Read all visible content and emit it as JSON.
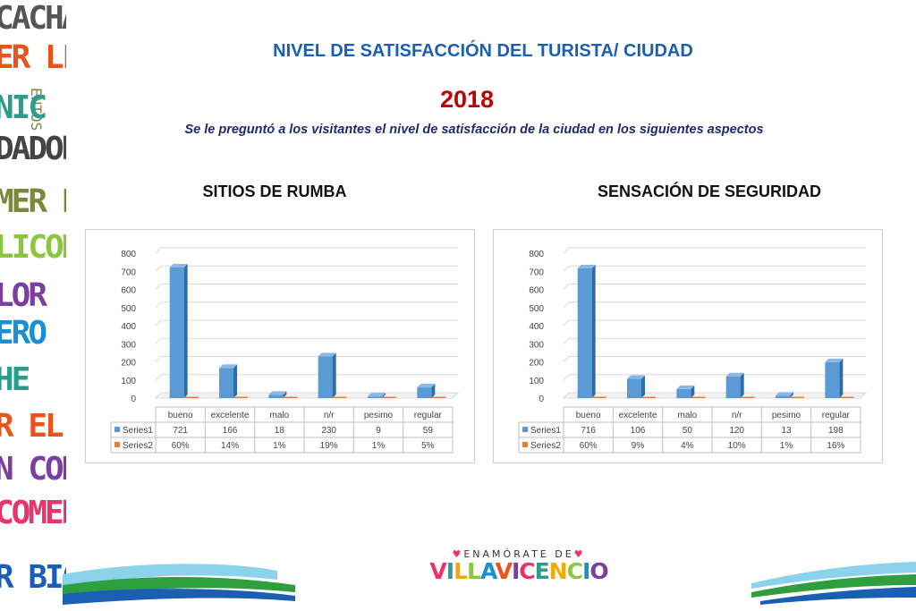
{
  "page": {
    "title": "NIVEL DE SATISFACCIÓN DEL TURISTA/ CIUDAD",
    "year": "2018",
    "subtitle": "Se le preguntó a los visitantes el nivel de satisfacción de la ciudad en los siguientes aspectos"
  },
  "side_words": [
    {
      "text": "CACHA",
      "color": "#555555"
    },
    {
      "text": "ER LLAN",
      "color": "#e8531e"
    },
    {
      "text": "NIC",
      "color": "#2a9d8f"
    },
    {
      "text": "DADORE",
      "color": "#444444"
    },
    {
      "text": "MER EL F",
      "color": "#7a8a3a"
    },
    {
      "text": "LICON",
      "color": "#8cc63f"
    },
    {
      "text": "LOR",
      "color": "#7b3fa0"
    },
    {
      "text": "ERO",
      "color": "#1a8fd4"
    },
    {
      "text": "HE",
      "color": "#2a9d8f"
    },
    {
      "text": "R EL PARÇ",
      "color": "#e8531e"
    },
    {
      "text": "N CON",
      "color": "#7b3fa0"
    },
    {
      "text": "COMER",
      "color": "#e8336d"
    },
    {
      "text": "R BICIC",
      "color": "#1a5fb4"
    }
  ],
  "side_vertical": "ENTOS",
  "logo": {
    "top_text": "ENAMÓRATE DE",
    "main_text": "VILLAVICENCIO",
    "letter_colors": [
      "#e8336d",
      "#2a9d8f",
      "#f2a900",
      "#8cc63f",
      "#1a8fd4",
      "#e8531e",
      "#7b3fa0",
      "#e8336d",
      "#2a9d8f",
      "#f2a900",
      "#8cc63f",
      "#1a8fd4",
      "#7b3fa0"
    ]
  },
  "colors": {
    "series1": "#5b9bd5",
    "series2": "#ed7d31"
  },
  "chart_data": [
    {
      "type": "bar",
      "title": "SITIOS DE RUMBA",
      "categories": [
        "bueno",
        "excelente",
        "malo",
        "n/r",
        "pesimo",
        "regular"
      ],
      "series": [
        {
          "name": "Series1",
          "values": [
            721,
            166,
            18,
            230,
            9,
            59
          ],
          "labels": [
            "721",
            "166",
            "18",
            "230",
            "9",
            "59"
          ]
        },
        {
          "name": "Series2",
          "values": [
            0.6,
            0.14,
            0.01,
            0.19,
            0.01,
            0.05
          ],
          "labels": [
            "60%",
            "14%",
            "1%",
            "19%",
            "1%",
            "5%"
          ]
        }
      ],
      "yticks": [
        "0",
        "100",
        "200",
        "300",
        "400",
        "500",
        "600",
        "700",
        "800"
      ],
      "ylim": [
        0,
        800
      ],
      "grid": true,
      "data_table": true
    },
    {
      "type": "bar",
      "title": "SENSACIÓN DE SEGURIDAD",
      "categories": [
        "bueno",
        "excelente",
        "malo",
        "n/r",
        "pesimo",
        "regular"
      ],
      "series": [
        {
          "name": "Series1",
          "values": [
            716,
            106,
            50,
            120,
            13,
            198
          ],
          "labels": [
            "716",
            "106",
            "50",
            "120",
            "13",
            "198"
          ]
        },
        {
          "name": "Series2",
          "values": [
            0.6,
            0.09,
            0.04,
            0.1,
            0.01,
            0.16
          ],
          "labels": [
            "60%",
            "9%",
            "4%",
            "10%",
            "1%",
            "16%"
          ]
        }
      ],
      "yticks": [
        "0",
        "100",
        "200",
        "300",
        "400",
        "500",
        "600",
        "700",
        "800"
      ],
      "ylim": [
        0,
        800
      ],
      "grid": true,
      "data_table": true
    }
  ]
}
